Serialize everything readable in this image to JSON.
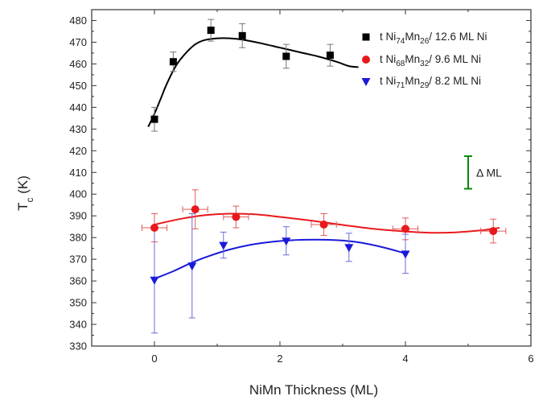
{
  "chart_data": {
    "type": "scatter",
    "xlabel": "NiMn Thickness (ML)",
    "ylabel": {
      "main": "T",
      "sub": "c",
      "tail": " (K)"
    },
    "xlim": [
      -1,
      6
    ],
    "ylim": [
      330,
      485
    ],
    "xticks": [
      0,
      2,
      4,
      6
    ],
    "yticks": [
      330,
      340,
      350,
      360,
      370,
      380,
      390,
      400,
      410,
      420,
      430,
      440,
      450,
      460,
      470,
      480
    ],
    "grid": false,
    "legend_position": "top-right",
    "series": [
      {
        "key": "s1",
        "marker": "square",
        "color": "#000000",
        "legend": [
          {
            "t": "t Ni"
          },
          {
            "t": "74",
            "sub": true
          },
          {
            "t": "Mn"
          },
          {
            "t": "26",
            "sub": true
          },
          {
            "t": "/ 12.6  ML Ni"
          }
        ],
        "points": [
          {
            "x": 0.0,
            "y": 434.5,
            "yerr": 5.5,
            "xerr": 0
          },
          {
            "x": 0.3,
            "y": 461,
            "yerr": 4.5,
            "xerr": 0
          },
          {
            "x": 0.9,
            "y": 475.5,
            "yerr": 5,
            "xerr": 0
          },
          {
            "x": 1.4,
            "y": 473,
            "yerr": 5.5,
            "xerr": 0
          },
          {
            "x": 2.1,
            "y": 463.5,
            "yerr": 5.5,
            "xerr": 0
          },
          {
            "x": 2.8,
            "y": 464,
            "yerr": 5,
            "xerr": 0
          }
        ],
        "fit": [
          [
            -0.1,
            431
          ],
          [
            0.0,
            437
          ],
          [
            0.1,
            444
          ],
          [
            0.2,
            451
          ],
          [
            0.35,
            459.5
          ],
          [
            0.5,
            465
          ],
          [
            0.65,
            469
          ],
          [
            0.8,
            471
          ],
          [
            1.0,
            471.8
          ],
          [
            1.2,
            471.8
          ],
          [
            1.4,
            471.2
          ],
          [
            1.7,
            469.5
          ],
          [
            2.0,
            467.5
          ],
          [
            2.3,
            465.5
          ],
          [
            2.6,
            463.5
          ],
          [
            2.9,
            461
          ],
          [
            3.1,
            459
          ],
          [
            3.25,
            458.5
          ]
        ]
      },
      {
        "key": "s2",
        "marker": "circle",
        "color": "#e8191c",
        "legend": [
          {
            "t": "t Ni"
          },
          {
            "t": "68",
            "sub": true
          },
          {
            "t": "Mn"
          },
          {
            "t": "32",
            "sub": true
          },
          {
            "t": "/ 9.6  ML Ni"
          }
        ],
        "points": [
          {
            "x": 0.0,
            "y": 384.5,
            "yerr": 6.5,
            "xerr": 0.2
          },
          {
            "x": 0.65,
            "y": 393,
            "yerr": 9,
            "xerr": 0.2
          },
          {
            "x": 1.3,
            "y": 389.5,
            "yerr": 5,
            "xerr": 0.2
          },
          {
            "x": 2.7,
            "y": 386,
            "yerr": 5,
            "xerr": 0.2
          },
          {
            "x": 4.0,
            "y": 384,
            "yerr": 5,
            "xerr": 0.2
          },
          {
            "x": 5.4,
            "y": 383,
            "yerr": 5.5,
            "xerr": 0.2
          }
        ],
        "fit": [
          [
            0.0,
            386
          ],
          [
            0.4,
            388.5
          ],
          [
            0.8,
            390.3
          ],
          [
            1.2,
            391
          ],
          [
            1.6,
            390.7
          ],
          [
            2.0,
            389.5
          ],
          [
            2.5,
            387.8
          ],
          [
            3.0,
            385.8
          ],
          [
            3.5,
            384
          ],
          [
            4.0,
            382.8
          ],
          [
            4.4,
            382.2
          ],
          [
            4.8,
            382.4
          ],
          [
            5.2,
            383.3
          ],
          [
            5.5,
            384.5
          ]
        ]
      },
      {
        "key": "s3",
        "marker": "triangle-down",
        "color": "#1a1adb",
        "legend": [
          {
            "t": "t  Ni"
          },
          {
            "t": "71",
            "sub": true
          },
          {
            "t": "Mn"
          },
          {
            "t": "29",
            "sub": true
          },
          {
            "t": "/ 8.2  ML Ni"
          }
        ],
        "points": [
          {
            "x": 0.0,
            "y": 360.5,
            "yerr": 24.5,
            "xerr": 0
          },
          {
            "x": 0.6,
            "y": 367,
            "yerr": 24,
            "xerr": 0
          },
          {
            "x": 1.1,
            "y": 376.5,
            "yerr": 6,
            "xerr": 0
          },
          {
            "x": 2.1,
            "y": 378.5,
            "yerr": 6.5,
            "xerr": 0
          },
          {
            "x": 3.1,
            "y": 375.5,
            "yerr": 6.5,
            "xerr": 0
          },
          {
            "x": 4.0,
            "y": 372.5,
            "yerr": 9,
            "xerr": 0
          }
        ],
        "fit": [
          [
            0.0,
            361
          ],
          [
            0.3,
            364.5
          ],
          [
            0.6,
            368.5
          ],
          [
            0.9,
            371.8
          ],
          [
            1.2,
            374.5
          ],
          [
            1.5,
            376.5
          ],
          [
            1.8,
            377.8
          ],
          [
            2.1,
            378.6
          ],
          [
            2.4,
            379
          ],
          [
            2.7,
            379
          ],
          [
            3.0,
            378.6
          ],
          [
            3.3,
            377.6
          ],
          [
            3.6,
            375.8
          ],
          [
            3.9,
            373.5
          ],
          [
            4.0,
            372.5
          ]
        ]
      }
    ],
    "annotation": {
      "label": "Δ ML",
      "x": 5.0,
      "y_low": 402.5,
      "y_high": 417.5,
      "color": "#0a8a0a"
    }
  }
}
